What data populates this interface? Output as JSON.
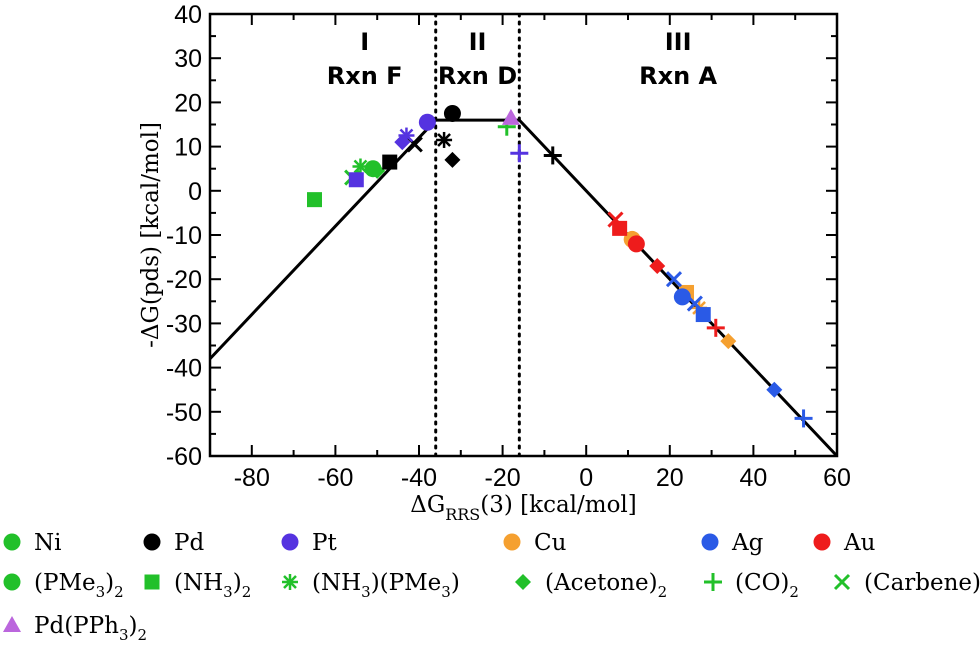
{
  "chart_data": {
    "type": "scatter",
    "title": "",
    "xlabel": {
      "main": "ΔG",
      "sub": "RRS",
      "tail": "(3) [kcal/mol]"
    },
    "ylabel": "-ΔG(pds) [kcal/mol]",
    "xlim": [
      -90,
      60
    ],
    "ylim": [
      -60,
      40
    ],
    "xticks": [
      -80,
      -60,
      -40,
      -20,
      0,
      20,
      40,
      60
    ],
    "yticks": [
      -60,
      -50,
      -40,
      -30,
      -20,
      -10,
      0,
      10,
      20,
      30,
      40
    ],
    "xtick_labels": [
      "-80",
      "-60",
      "-40",
      "-20",
      "0",
      "20",
      "40",
      "60"
    ],
    "ytick_labels": [
      "-60",
      "-50",
      "-40",
      "-30",
      "-20",
      "-10",
      "0",
      "10",
      "20",
      "30",
      "40"
    ],
    "grid": false,
    "volcano_line": [
      [
        -90,
        -38
      ],
      [
        -36,
        16
      ],
      [
        -16,
        16
      ],
      [
        60,
        -60
      ]
    ],
    "region_boundaries": [
      -36,
      -16
    ],
    "regions": [
      {
        "roman": "I",
        "rxn": "Rxn F",
        "x": -53
      },
      {
        "roman": "II",
        "rxn": "Rxn D",
        "x": -26
      },
      {
        "roman": "III",
        "rxn": "Rxn A",
        "x": 22
      }
    ],
    "colors": {
      "Ni": "#22c02a",
      "Pd": "#000000",
      "Pt": "#5533e0",
      "Cu": "#f5a030",
      "Ag": "#2a5ae6",
      "Au": "#ee1c1c",
      "PdPPh3": "#bb66dd"
    },
    "points": [
      {
        "x": -65,
        "y": -2,
        "metal": "Ni",
        "ligand": "square"
      },
      {
        "x": -54,
        "y": 5.5,
        "metal": "Ni",
        "ligand": "asterisk"
      },
      {
        "x": -56,
        "y": 3,
        "metal": "Ni",
        "ligand": "x"
      },
      {
        "x": -51,
        "y": 5,
        "metal": "Ni",
        "ligand": "circle"
      },
      {
        "x": -50,
        "y": 4.5,
        "metal": "Ni",
        "ligand": "diamond"
      },
      {
        "x": -19,
        "y": 14.5,
        "metal": "Ni",
        "ligand": "plus"
      },
      {
        "x": -32,
        "y": 17.5,
        "metal": "Pd",
        "ligand": "circle"
      },
      {
        "x": -47,
        "y": 6.5,
        "metal": "Pd",
        "ligand": "square"
      },
      {
        "x": -34,
        "y": 11.5,
        "metal": "Pd",
        "ligand": "asterisk"
      },
      {
        "x": -32,
        "y": 7,
        "metal": "Pd",
        "ligand": "diamond"
      },
      {
        "x": -8,
        "y": 8,
        "metal": "Pd",
        "ligand": "plus"
      },
      {
        "x": -41,
        "y": 10.5,
        "metal": "Pd",
        "ligand": "x"
      },
      {
        "x": -38,
        "y": 15.5,
        "metal": "Pt",
        "ligand": "circle"
      },
      {
        "x": -55,
        "y": 2.5,
        "metal": "Pt",
        "ligand": "square"
      },
      {
        "x": -43,
        "y": 12.5,
        "metal": "Pt",
        "ligand": "asterisk"
      },
      {
        "x": -44,
        "y": 11,
        "metal": "Pt",
        "ligand": "diamond"
      },
      {
        "x": -16,
        "y": 8.5,
        "metal": "Pt",
        "ligand": "plus"
      },
      {
        "x": 11,
        "y": -11,
        "metal": "Cu",
        "ligand": "circle"
      },
      {
        "x": 24,
        "y": -23,
        "metal": "Cu",
        "ligand": "square"
      },
      {
        "x": 27,
        "y": -26.5,
        "metal": "Cu",
        "ligand": "asterisk"
      },
      {
        "x": 34,
        "y": -34,
        "metal": "Cu",
        "ligand": "diamond"
      },
      {
        "x": 23,
        "y": -24,
        "metal": "Ag",
        "ligand": "circle"
      },
      {
        "x": 28,
        "y": -28,
        "metal": "Ag",
        "ligand": "square"
      },
      {
        "x": 45,
        "y": -45,
        "metal": "Ag",
        "ligand": "diamond"
      },
      {
        "x": 52,
        "y": -51.5,
        "metal": "Ag",
        "ligand": "plus"
      },
      {
        "x": 21,
        "y": -20,
        "metal": "Ag",
        "ligand": "x"
      },
      {
        "x": 26,
        "y": -25.5,
        "metal": "Ag",
        "ligand": "x"
      },
      {
        "x": 12,
        "y": -12,
        "metal": "Au",
        "ligand": "circle"
      },
      {
        "x": 8,
        "y": -8.5,
        "metal": "Au",
        "ligand": "square"
      },
      {
        "x": 17,
        "y": -17,
        "metal": "Au",
        "ligand": "diamond"
      },
      {
        "x": 31,
        "y": -31,
        "metal": "Au",
        "ligand": "plus"
      },
      {
        "x": 7,
        "y": -6.5,
        "metal": "Au",
        "ligand": "x"
      },
      {
        "x": -18,
        "y": 16.5,
        "metal": "PdPPh3",
        "ligand": "triangle"
      }
    ],
    "legend": {
      "rows": [
        [
          {
            "shape": "circle",
            "color": "Ni",
            "label": "Ni"
          },
          {
            "shape": "circle",
            "color": "Pd",
            "label": "Pd"
          },
          {
            "shape": "circle",
            "color": "Pt",
            "label": "Pt"
          },
          {
            "shape": "circle",
            "color": "Cu",
            "label": "Cu"
          },
          {
            "shape": "circle",
            "color": "Ag",
            "label": "Ag"
          },
          {
            "shape": "circle",
            "color": "Au",
            "label": "Au"
          }
        ],
        [
          {
            "shape": "circle",
            "color": "Ni",
            "label": "(PMe",
            "sub1": "3",
            "mid": ")",
            "sub2": "2"
          },
          {
            "shape": "square",
            "color": "Ni",
            "label": "(NH",
            "sub1": "3",
            "mid": ")",
            "sub2": "2"
          },
          {
            "shape": "asterisk",
            "color": "Ni",
            "label": "(NH",
            "sub1": "3",
            "mid": ")(PMe",
            "sub2": "3",
            "tail": ")"
          },
          {
            "shape": "diamond",
            "color": "Ni",
            "label": "(Acetone)",
            "sub1": "2"
          },
          {
            "shape": "plus",
            "color": "Ni",
            "label": "(CO)",
            "sub1": "2"
          },
          {
            "shape": "x",
            "color": "Ni",
            "label": "(Carbene)",
            "sub1": "2"
          }
        ],
        [
          {
            "shape": "triangle",
            "color": "PdPPh3",
            "label": "Pd(PPh",
            "sub1": "3",
            "mid": ")",
            "sub2": "2"
          }
        ]
      ]
    }
  }
}
